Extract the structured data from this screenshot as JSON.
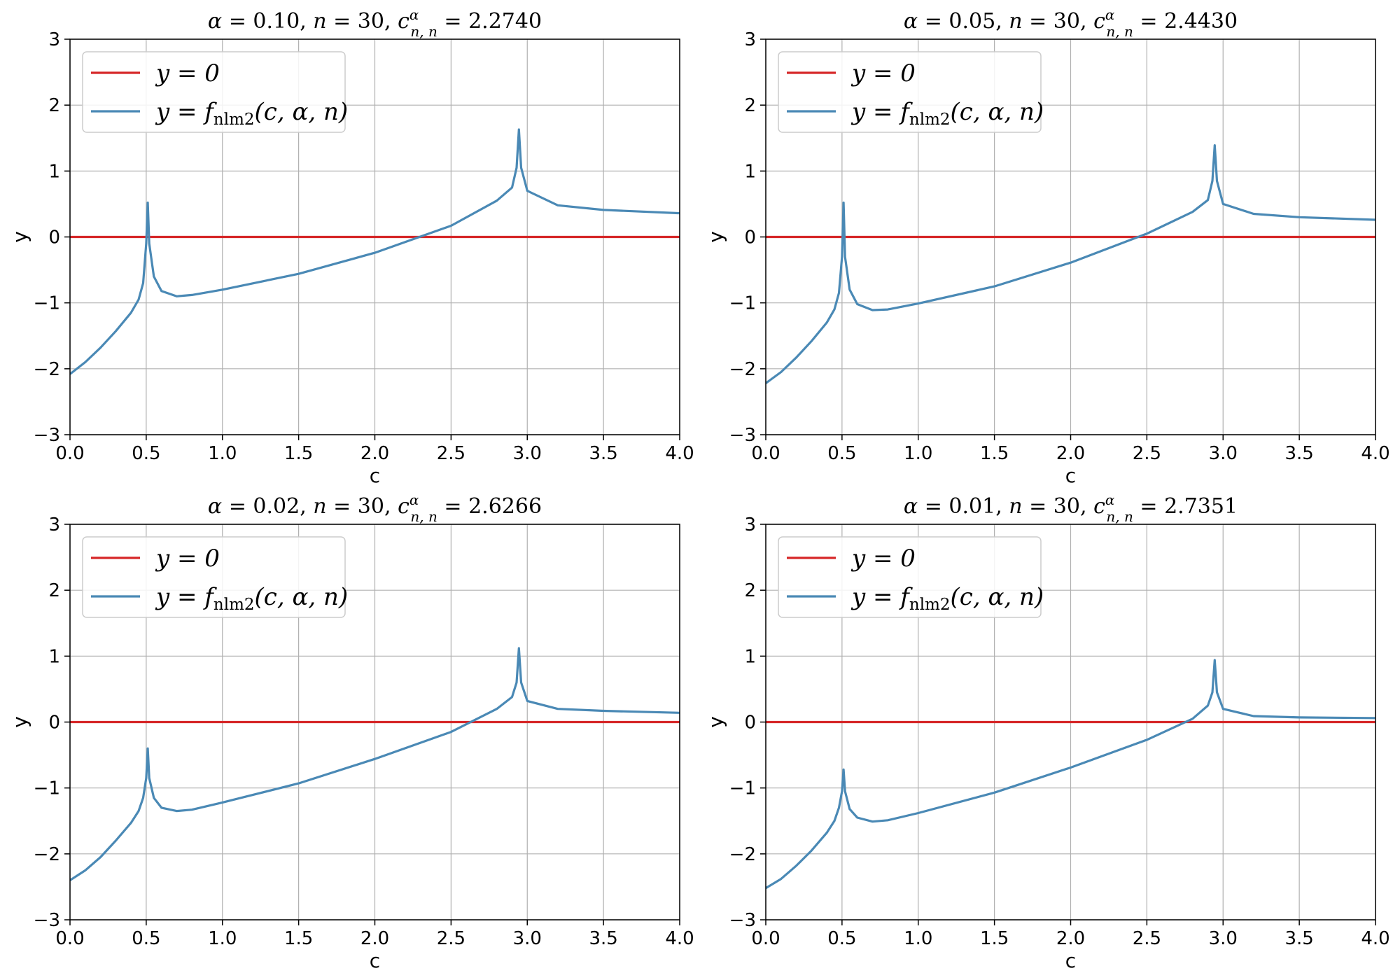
{
  "chart_data": [
    {
      "type": "line",
      "title": "α = 0.10, n = 30, c^α_{n,n} = 2.2740",
      "title_parts": {
        "alpha": "0.10",
        "n": "30",
        "c": "2.2740"
      },
      "xlabel": "c",
      "ylabel": "y",
      "xlim": [
        0,
        4
      ],
      "ylim": [
        -3,
        3
      ],
      "xticks": [
        0.0,
        0.5,
        1.0,
        1.5,
        2.0,
        2.5,
        3.0,
        3.5,
        4.0
      ],
      "yticks": [
        -3,
        -2,
        -1,
        0,
        1,
        2,
        3
      ],
      "grid": true,
      "legend_position": "top-left",
      "series": [
        {
          "name": "y = 0",
          "color": "#d62728",
          "x": [
            0,
            4
          ],
          "y": [
            0,
            0
          ]
        },
        {
          "name": "y = f_nlm2(c, α, n)",
          "color": "#4a89b5",
          "x": [
            0.0,
            0.1,
            0.2,
            0.3,
            0.4,
            0.45,
            0.48,
            0.5,
            0.51,
            0.52,
            0.55,
            0.6,
            0.7,
            0.8,
            1.0,
            1.5,
            2.0,
            2.5,
            2.8,
            2.9,
            2.93,
            2.945,
            2.96,
            3.0,
            3.2,
            3.5,
            4.0
          ],
          "y": [
            -2.08,
            -1.9,
            -1.68,
            -1.43,
            -1.15,
            -0.95,
            -0.7,
            -0.1,
            0.52,
            -0.1,
            -0.6,
            -0.82,
            -0.9,
            -0.88,
            -0.8,
            -0.56,
            -0.24,
            0.17,
            0.55,
            0.75,
            1.05,
            1.63,
            1.05,
            0.7,
            0.48,
            0.41,
            0.36
          ]
        }
      ]
    },
    {
      "type": "line",
      "title": "α = 0.05, n = 30, c^α_{n,n} = 2.4430",
      "title_parts": {
        "alpha": "0.05",
        "n": "30",
        "c": "2.4430"
      },
      "xlabel": "c",
      "ylabel": "y",
      "xlim": [
        0,
        4
      ],
      "ylim": [
        -3,
        3
      ],
      "xticks": [
        0.0,
        0.5,
        1.0,
        1.5,
        2.0,
        2.5,
        3.0,
        3.5,
        4.0
      ],
      "yticks": [
        -3,
        -2,
        -1,
        0,
        1,
        2,
        3
      ],
      "grid": true,
      "legend_position": "top-left",
      "series": [
        {
          "name": "y = 0",
          "color": "#d62728",
          "x": [
            0,
            4
          ],
          "y": [
            0,
            0
          ]
        },
        {
          "name": "y = f_nlm2(c, α, n)",
          "color": "#4a89b5",
          "x": [
            0.0,
            0.1,
            0.2,
            0.3,
            0.4,
            0.45,
            0.48,
            0.5,
            0.51,
            0.52,
            0.55,
            0.6,
            0.7,
            0.8,
            1.0,
            1.5,
            2.0,
            2.5,
            2.8,
            2.9,
            2.93,
            2.945,
            2.96,
            3.0,
            3.2,
            3.5,
            4.0
          ],
          "y": [
            -2.22,
            -2.05,
            -1.83,
            -1.58,
            -1.3,
            -1.1,
            -0.85,
            -0.3,
            0.52,
            -0.3,
            -0.8,
            -1.02,
            -1.11,
            -1.1,
            -1.01,
            -0.75,
            -0.39,
            0.05,
            0.38,
            0.56,
            0.85,
            1.39,
            0.85,
            0.5,
            0.35,
            0.3,
            0.26
          ]
        }
      ]
    },
    {
      "type": "line",
      "title": "α = 0.02, n = 30, c^α_{n,n} = 2.6266",
      "title_parts": {
        "alpha": "0.02",
        "n": "30",
        "c": "2.6266"
      },
      "xlabel": "c",
      "ylabel": "y",
      "xlim": [
        0,
        4
      ],
      "ylim": [
        -3,
        3
      ],
      "xticks": [
        0.0,
        0.5,
        1.0,
        1.5,
        2.0,
        2.5,
        3.0,
        3.5,
        4.0
      ],
      "yticks": [
        -3,
        -2,
        -1,
        0,
        1,
        2,
        3
      ],
      "grid": true,
      "legend_position": "top-left",
      "series": [
        {
          "name": "y = 0",
          "color": "#d62728",
          "x": [
            0,
            4
          ],
          "y": [
            0,
            0
          ]
        },
        {
          "name": "y = f_nlm2(c, α, n)",
          "color": "#4a89b5",
          "x": [
            0.0,
            0.1,
            0.2,
            0.3,
            0.4,
            0.45,
            0.48,
            0.5,
            0.51,
            0.52,
            0.55,
            0.6,
            0.7,
            0.8,
            1.0,
            1.5,
            2.0,
            2.5,
            2.8,
            2.9,
            2.93,
            2.945,
            2.96,
            3.0,
            3.2,
            3.5,
            4.0
          ],
          "y": [
            -2.4,
            -2.25,
            -2.05,
            -1.8,
            -1.53,
            -1.35,
            -1.15,
            -0.85,
            -0.4,
            -0.85,
            -1.15,
            -1.3,
            -1.35,
            -1.33,
            -1.22,
            -0.93,
            -0.56,
            -0.15,
            0.2,
            0.38,
            0.6,
            1.12,
            0.6,
            0.32,
            0.2,
            0.17,
            0.14
          ]
        }
      ]
    },
    {
      "type": "line",
      "title": "α = 0.01, n = 30, c^α_{n,n} = 2.7351",
      "title_parts": {
        "alpha": "0.01",
        "n": "30",
        "c": "2.7351"
      },
      "xlabel": "c",
      "ylabel": "y",
      "xlim": [
        0,
        4
      ],
      "ylim": [
        -3,
        3
      ],
      "xticks": [
        0.0,
        0.5,
        1.0,
        1.5,
        2.0,
        2.5,
        3.0,
        3.5,
        4.0
      ],
      "yticks": [
        -3,
        -2,
        -1,
        0,
        1,
        2,
        3
      ],
      "grid": true,
      "legend_position": "top-left",
      "series": [
        {
          "name": "y = 0",
          "color": "#d62728",
          "x": [
            0,
            4
          ],
          "y": [
            0,
            0
          ]
        },
        {
          "name": "y = f_nlm2(c, α, n)",
          "color": "#4a89b5",
          "x": [
            0.0,
            0.1,
            0.2,
            0.3,
            0.4,
            0.45,
            0.48,
            0.5,
            0.51,
            0.52,
            0.55,
            0.6,
            0.7,
            0.8,
            1.0,
            1.5,
            2.0,
            2.5,
            2.8,
            2.9,
            2.93,
            2.945,
            2.96,
            3.0,
            3.2,
            3.5,
            4.0
          ],
          "y": [
            -2.52,
            -2.38,
            -2.18,
            -1.95,
            -1.68,
            -1.5,
            -1.3,
            -1.05,
            -0.72,
            -1.05,
            -1.32,
            -1.45,
            -1.51,
            -1.49,
            -1.38,
            -1.07,
            -0.69,
            -0.27,
            0.05,
            0.25,
            0.45,
            0.94,
            0.45,
            0.2,
            0.09,
            0.07,
            0.06
          ]
        }
      ]
    }
  ]
}
